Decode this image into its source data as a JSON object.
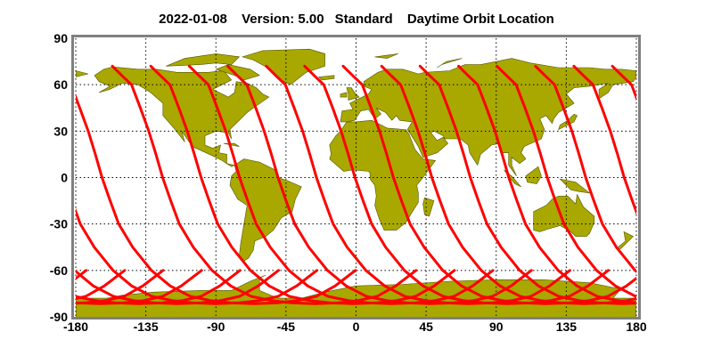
{
  "title": {
    "date": "2022-01-08",
    "version": "Version: 5.00",
    "product": "Standard",
    "subtitle": "Daytime Orbit Location"
  },
  "chart_data": {
    "type": "map",
    "projection": "equirectangular",
    "xlim": [
      -180,
      180
    ],
    "ylim": [
      -90,
      90
    ],
    "x_ticks": [
      "-180",
      "-135",
      "-90",
      "-45",
      "0",
      "45",
      "90",
      "135",
      "180"
    ],
    "y_ticks": [
      "90",
      "60",
      "30",
      "0",
      "-30",
      "-60",
      "-90"
    ],
    "grid": "dotted",
    "orbit_tracks": {
      "description_visible": false,
      "start_latitude": 72,
      "end_latitude": -60,
      "start_longitudes": [
        -156.5,
        -131.8,
        -107.1,
        -82.4,
        -57.7,
        -33.0,
        -8.3,
        16.4,
        41.1,
        65.8,
        90.5,
        115.2,
        139.9,
        164.6
      ]
    },
    "colors": {
      "land": "#a8a800",
      "coast": "#555500",
      "track": "#ff0000",
      "frame": "#808080"
    }
  }
}
